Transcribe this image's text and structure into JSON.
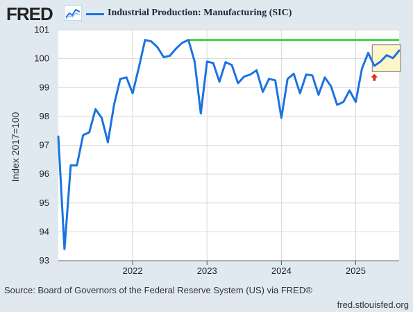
{
  "header": {
    "logo_text": "FRED",
    "legend_label": "Industrial Production: Manufacturing (SIC)"
  },
  "colors": {
    "background": "#e1e9f0",
    "plot_background": "#ffffff",
    "series": "#1b73e0",
    "reference_line": "#3fd43f",
    "highlight_box_fill": "#fbf7c9",
    "highlight_box_stroke": "#777777",
    "arrow": "#e8261d",
    "gridline": "#d8d8d8"
  },
  "footer": {
    "source": "Source: Board of Governors of the Federal Reserve System (US) via FRED®",
    "url": "fred.stlouisfed.org"
  },
  "chart_data": {
    "type": "line",
    "ylabel": "Index 2017=100",
    "xlabel": "",
    "ylim": [
      93,
      101
    ],
    "yticks": [
      93,
      94,
      95,
      96,
      97,
      98,
      99,
      100,
      101
    ],
    "xlim": [
      "2021-01",
      "2025-08"
    ],
    "xticks": [
      {
        "label": "2022",
        "x": "2022-01"
      },
      {
        "label": "2023",
        "x": "2023-01"
      },
      {
        "label": "2024",
        "x": "2024-01"
      },
      {
        "label": "2025",
        "x": "2025-01"
      }
    ],
    "grid": true,
    "legend_position": "top",
    "series": [
      {
        "name": "Industrial Production: Manufacturing (SIC)",
        "x": [
          "2021-01",
          "2021-02",
          "2021-03",
          "2021-04",
          "2021-05",
          "2021-06",
          "2021-07",
          "2021-08",
          "2021-09",
          "2021-10",
          "2021-11",
          "2021-12",
          "2022-01",
          "2022-02",
          "2022-03",
          "2022-04",
          "2022-05",
          "2022-06",
          "2022-07",
          "2022-08",
          "2022-09",
          "2022-10",
          "2022-11",
          "2022-12",
          "2023-01",
          "2023-02",
          "2023-03",
          "2023-04",
          "2023-05",
          "2023-06",
          "2023-07",
          "2023-08",
          "2023-09",
          "2023-10",
          "2023-11",
          "2023-12",
          "2024-01",
          "2024-02",
          "2024-03",
          "2024-04",
          "2024-05",
          "2024-06",
          "2024-07",
          "2024-08",
          "2024-09",
          "2024-10",
          "2024-11",
          "2024-12",
          "2025-01",
          "2025-02",
          "2025-03",
          "2025-04",
          "2025-05",
          "2025-06",
          "2025-07",
          "2025-08"
        ],
        "values": [
          97.3,
          93.4,
          96.3,
          96.3,
          97.35,
          97.45,
          98.25,
          97.95,
          97.1,
          98.4,
          99.3,
          99.35,
          98.8,
          99.7,
          100.65,
          100.6,
          100.4,
          100.05,
          100.1,
          100.35,
          100.55,
          100.65,
          99.9,
          98.1,
          99.9,
          99.85,
          99.2,
          99.88,
          99.78,
          99.15,
          99.38,
          99.45,
          99.6,
          98.85,
          99.3,
          99.25,
          97.95,
          99.3,
          99.48,
          98.8,
          99.45,
          99.42,
          98.75,
          99.35,
          99.05,
          98.4,
          98.5,
          98.9,
          98.5,
          99.65,
          100.2,
          99.75,
          99.9,
          100.12,
          100.02,
          100.28
        ]
      }
    ],
    "annotations": [
      {
        "type": "horizontal_line",
        "y": 100.65,
        "from": "2022-10",
        "to": "2025-08"
      },
      {
        "type": "box",
        "from": "2025-04",
        "to": "2025-08",
        "y_range": [
          99.55,
          100.48
        ]
      },
      {
        "type": "arrow_up",
        "x": "2025-04",
        "y_tip": 99.47
      }
    ]
  }
}
